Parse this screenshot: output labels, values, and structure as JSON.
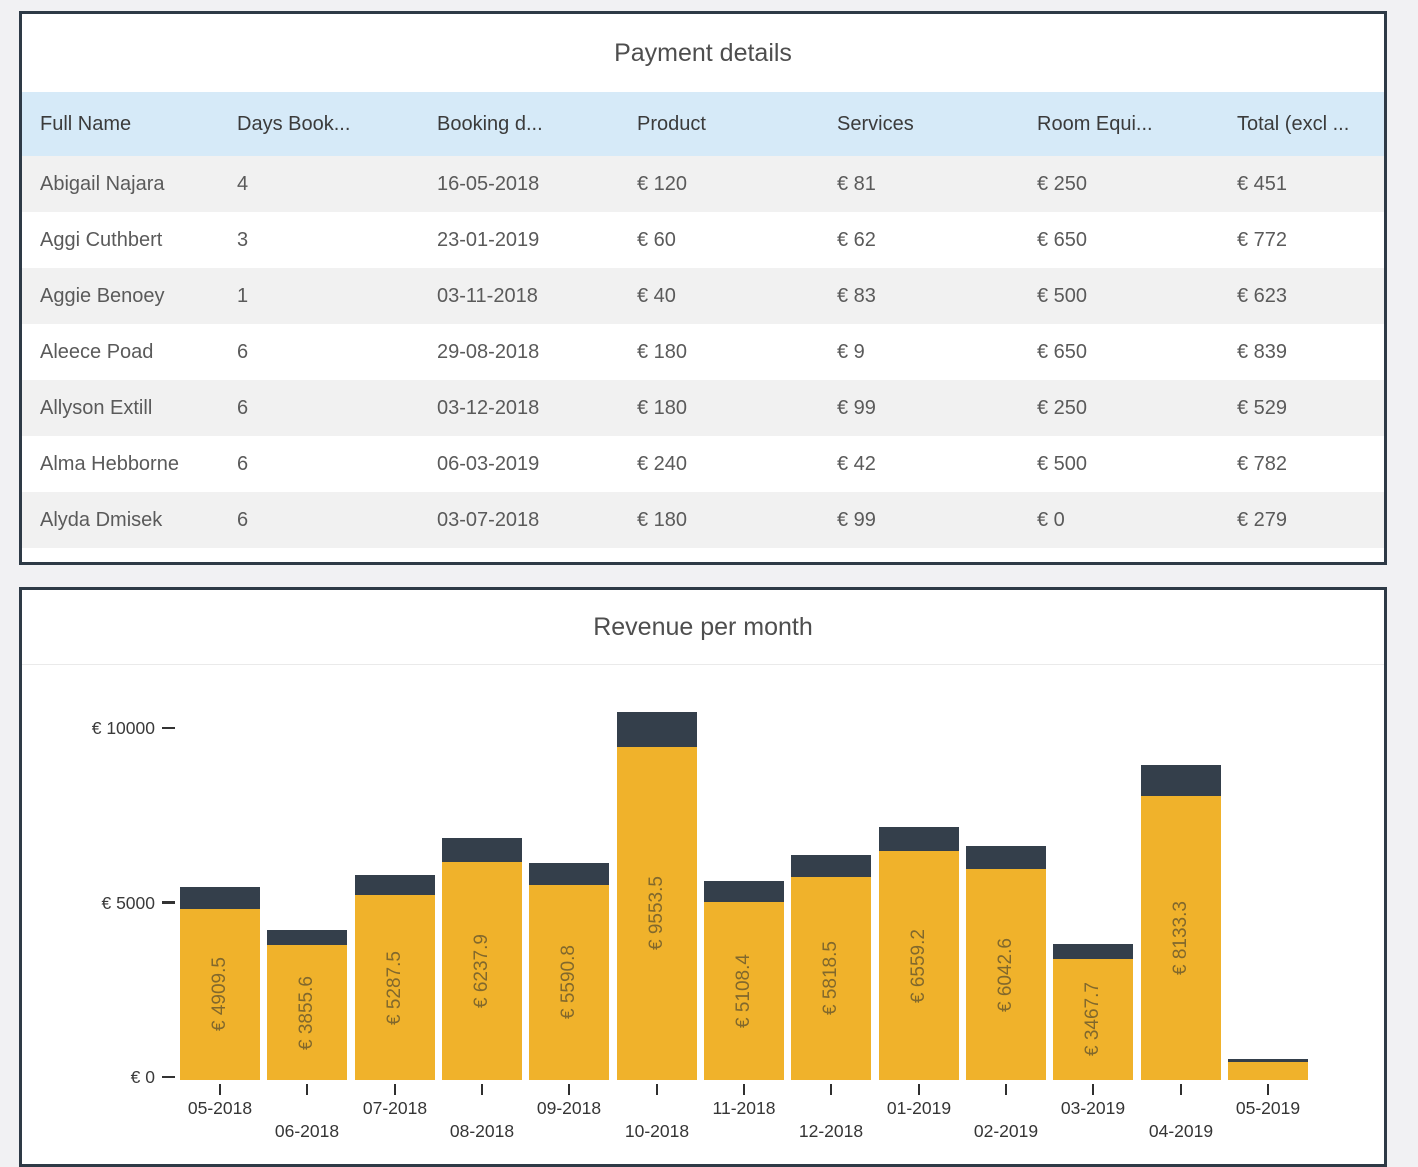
{
  "payment_table": {
    "title": "Payment details",
    "columns": [
      "Full Name",
      "Days Book...",
      "Booking d...",
      "Product",
      "Services",
      "Room Equi...",
      "Total (excl ..."
    ],
    "rows": [
      [
        "Abigail Najara",
        "4",
        "16-05-2018",
        "€ 120",
        "€ 81",
        "€ 250",
        "€ 451"
      ],
      [
        "Aggi Cuthbert",
        "3",
        "23-01-2019",
        "€ 60",
        "€ 62",
        "€ 650",
        "€ 772"
      ],
      [
        "Aggie Benoey",
        "1",
        "03-11-2018",
        "€ 40",
        "€ 83",
        "€ 500",
        "€ 623"
      ],
      [
        "Aleece Poad",
        "6",
        "29-08-2018",
        "€ 180",
        "€ 9",
        "€ 650",
        "€ 839"
      ],
      [
        "Allyson Extill",
        "6",
        "03-12-2018",
        "€ 180",
        "€ 99",
        "€ 250",
        "€ 529"
      ],
      [
        "Alma Hebborne",
        "6",
        "06-03-2019",
        "€ 240",
        "€ 42",
        "€ 500",
        "€ 782"
      ],
      [
        "Alyda Dmisek",
        "6",
        "03-07-2018",
        "€ 180",
        "€ 99",
        "€ 0",
        "€ 279"
      ]
    ],
    "header_bg": "#D6EAF8",
    "zebra_bg": "#F1F1F1"
  },
  "chart_data": {
    "type": "bar",
    "stacked": true,
    "title": "Revenue per month",
    "categories": [
      "05-2018",
      "06-2018",
      "07-2018",
      "08-2018",
      "09-2018",
      "10-2018",
      "11-2018",
      "12-2018",
      "01-2019",
      "02-2019",
      "03-2019",
      "04-2019",
      "05-2019"
    ],
    "series": [
      {
        "name": "revenue-base",
        "color": "#F0B22B",
        "values": [
          4909.5,
          3855.6,
          5287.5,
          6237.9,
          5590.8,
          9553.5,
          5108.4,
          5818.5,
          6559.2,
          6042.6,
          3467.7,
          8133.3,
          510
        ],
        "labels": [
          "€ 4909.5",
          "€ 3855.6",
          "€ 5287.5",
          "€ 6237.9",
          "€ 5590.8",
          "€ 9553.5",
          "€ 5108.4",
          "€ 5818.5",
          "€ 6559.2",
          "€ 6042.6",
          "€ 3467.7",
          "€ 8133.3",
          ""
        ]
      },
      {
        "name": "revenue-top",
        "color": "#343F4B",
        "values": [
          630,
          430,
          600,
          690,
          630,
          1000,
          600,
          630,
          690,
          660,
          430,
          890,
          90
        ],
        "labels": [
          "",
          "",
          "",
          "",
          "",
          "",
          "",
          "",
          "",
          "",
          "",
          "",
          ""
        ]
      }
    ],
    "y_axis": {
      "ticks": [
        {
          "value": 0,
          "label": "€ 0"
        },
        {
          "value": 5000,
          "label": "€ 5000"
        },
        {
          "value": 10000,
          "label": "€ 10000"
        }
      ],
      "max": 10650
    },
    "legend": "none",
    "grid": false
  }
}
